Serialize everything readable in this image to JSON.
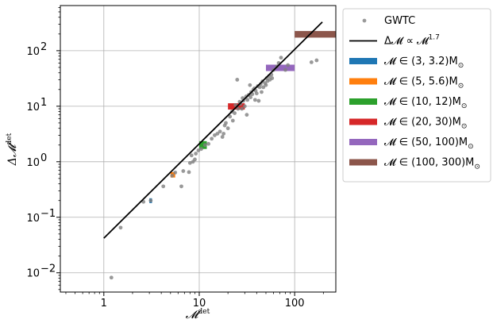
{
  "chart_data": {
    "type": "scatter",
    "xscale": "log",
    "yscale": "log",
    "xlim": [
      0.35,
      270
    ],
    "ylim": [
      0.0045,
      650
    ],
    "xlabel": "𝓜",
    "xlabel_sup": "det",
    "ylabel": "Δ𝓜",
    "ylabel_sup": "det",
    "grid": true,
    "legend_position": "outside-right",
    "x_ticks": [
      {
        "value": 1,
        "label": "1"
      },
      {
        "value": 10,
        "label": "10"
      },
      {
        "value": 100,
        "label": "100"
      }
    ],
    "y_ticks": [
      {
        "value": 0.01,
        "base": "10",
        "exp": "−2"
      },
      {
        "value": 0.1,
        "base": "10",
        "exp": "−1"
      },
      {
        "value": 1,
        "base": "10",
        "exp": "0"
      },
      {
        "value": 10,
        "base": "10",
        "exp": "1"
      },
      {
        "value": 100,
        "base": "10",
        "exp": "2"
      }
    ],
    "scatter": {
      "name": "GWTC",
      "color": "#7f7f7f",
      "points": [
        [
          1.2,
          0.0082
        ],
        [
          1.5,
          0.065
        ],
        [
          2.6,
          0.19
        ],
        [
          3.1,
          0.2
        ],
        [
          4.2,
          0.36
        ],
        [
          5.2,
          0.56
        ],
        [
          5.6,
          0.64
        ],
        [
          6.5,
          0.36
        ],
        [
          6.8,
          0.68
        ],
        [
          7.8,
          0.65
        ],
        [
          8.0,
          0.95
        ],
        [
          8.3,
          1.3
        ],
        [
          8.6,
          1.0
        ],
        [
          9.0,
          1.1
        ],
        [
          9.2,
          1.4
        ],
        [
          9.8,
          1.6
        ],
        [
          10.5,
          1.7
        ],
        [
          11.5,
          2.0
        ],
        [
          12.5,
          2.1
        ],
        [
          13.5,
          2.6
        ],
        [
          14.5,
          3.0
        ],
        [
          15.5,
          3.2
        ],
        [
          16.5,
          3.5
        ],
        [
          17.5,
          2.8
        ],
        [
          18.0,
          3.2
        ],
        [
          18.5,
          4.5
        ],
        [
          19.0,
          5.0
        ],
        [
          20.0,
          4.0
        ],
        [
          21.0,
          6.5
        ],
        [
          22.0,
          8.0
        ],
        [
          22.5,
          5.5
        ],
        [
          23.5,
          7.5
        ],
        [
          24.0,
          10.5
        ],
        [
          25.0,
          30.0
        ],
        [
          25.5,
          9.0
        ],
        [
          26.5,
          12.0
        ],
        [
          27.0,
          11.0
        ],
        [
          28.0,
          9.0
        ],
        [
          28.5,
          14.0
        ],
        [
          29.0,
          12.5
        ],
        [
          30.0,
          10.0
        ],
        [
          31.0,
          15.0
        ],
        [
          31.5,
          7.0
        ],
        [
          32.0,
          13.0
        ],
        [
          33.0,
          16.0
        ],
        [
          34.0,
          24.0
        ],
        [
          34.5,
          14.5
        ],
        [
          35.0,
          18.0
        ],
        [
          36.0,
          16.5
        ],
        [
          37.0,
          20.0
        ],
        [
          38.0,
          21.0
        ],
        [
          38.5,
          13.0
        ],
        [
          39.0,
          19.0
        ],
        [
          40.0,
          17.0
        ],
        [
          41.0,
          23.0
        ],
        [
          42.0,
          12.5
        ],
        [
          43.0,
          22.0
        ],
        [
          44.0,
          25.0
        ],
        [
          45.0,
          18.0
        ],
        [
          46.0,
          28.0
        ],
        [
          47.0,
          22.0
        ],
        [
          49.0,
          26.0
        ],
        [
          50.0,
          24.0
        ],
        [
          51.0,
          32.0
        ],
        [
          52.0,
          28.5
        ],
        [
          54.0,
          35.0
        ],
        [
          55.0,
          30.0
        ],
        [
          57.0,
          37.0
        ],
        [
          58.0,
          32.0
        ],
        [
          60.0,
          45.0
        ],
        [
          65.0,
          52.0
        ],
        [
          68.0,
          60.0
        ],
        [
          72.0,
          75.0
        ],
        [
          80.0,
          45.0
        ],
        [
          85.0,
          55.0
        ],
        [
          150.0,
          62.0
        ],
        [
          170.0,
          67.0
        ]
      ]
    },
    "line": {
      "name_prefix": "Δ𝓜 ∝ 𝓜",
      "name_sup": "1.7",
      "color": "#000000",
      "x": [
        1,
        195
      ],
      "coef": 0.042,
      "exponent": 1.7
    },
    "bands": [
      {
        "name": "𝓜 ∈ (3, 3.2)M",
        "sub": "⊙",
        "color": "#1f77b4",
        "xmin": 3,
        "xmax": 3.2,
        "ymin": 0.18,
        "ymax": 0.22
      },
      {
        "name": "𝓜 ∈ (5, 5.6)M",
        "sub": "⊙",
        "color": "#ff7f0e",
        "xmin": 5,
        "xmax": 5.6,
        "ymin": 0.52,
        "ymax": 0.65
      },
      {
        "name": "𝓜 ∈ (10, 12)M",
        "sub": "⊙",
        "color": "#2ca02c",
        "xmin": 10,
        "xmax": 12,
        "ymin": 1.7,
        "ymax": 2.35
      },
      {
        "name": "𝓜 ∈ (20, 30)M",
        "sub": "⊙",
        "color": "#d62728",
        "xmin": 20,
        "xmax": 30,
        "ymin": 8.7,
        "ymax": 11.3
      },
      {
        "name": "𝓜 ∈ (50, 100)M",
        "sub": "⊙",
        "color": "#9467bd",
        "xmin": 50,
        "xmax": 100,
        "ymin": 43,
        "ymax": 56
      },
      {
        "name": "𝓜 ∈ (100, 300)M",
        "sub": "⊙",
        "color": "#8c564b",
        "xmin": 100,
        "xmax": 300,
        "ymin": 172,
        "ymax": 226
      }
    ]
  }
}
